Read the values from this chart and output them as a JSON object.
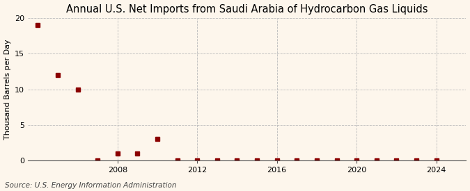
{
  "title": "Annual U.S. Net Imports from Saudi Arabia of Hydrocarbon Gas Liquids",
  "ylabel": "Thousand Barrels per Day",
  "source": "Source: U.S. Energy Information Administration",
  "background_color": "#fdf6ec",
  "years": [
    2004,
    2005,
    2006,
    2007,
    2008,
    2009,
    2010,
    2011,
    2012,
    2013,
    2014,
    2015,
    2016,
    2017,
    2018,
    2019,
    2020,
    2021,
    2022,
    2023,
    2024
  ],
  "values": [
    19,
    12,
    10,
    0,
    1,
    1,
    3,
    0,
    0,
    0,
    0,
    0,
    0,
    0,
    0,
    0,
    0,
    0,
    0,
    0,
    0
  ],
  "marker_color": "#8b0000",
  "marker_size": 4,
  "ylim": [
    0,
    20
  ],
  "yticks": [
    0,
    5,
    10,
    15,
    20
  ],
  "xlim": [
    2003.5,
    2025.5
  ],
  "xticks": [
    2008,
    2012,
    2016,
    2020,
    2024
  ],
  "grid_color": "#bbbbbb",
  "title_fontsize": 10.5,
  "label_fontsize": 8,
  "tick_fontsize": 8,
  "source_fontsize": 7.5
}
